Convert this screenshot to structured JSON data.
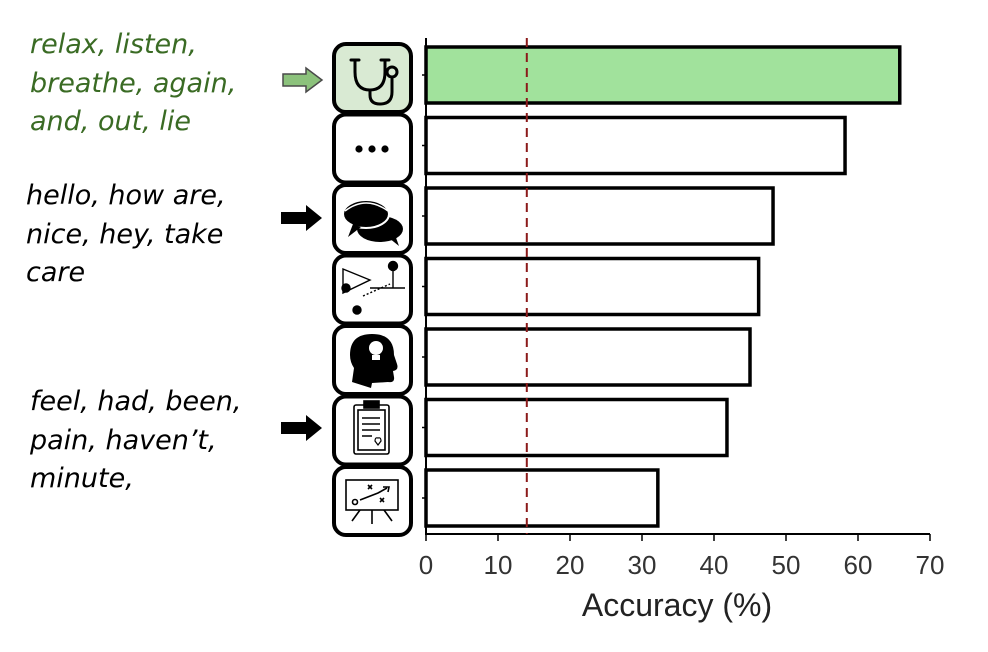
{
  "annotations": [
    {
      "lines": [
        "relax, listen,",
        "breathe, again,",
        "and, out, lie"
      ],
      "color": "#3a6b24",
      "arrow": "green"
    },
    {
      "lines": [
        "hello, how are,",
        "nice, hey, take",
        "care"
      ],
      "color": "#000000",
      "arrow": "black"
    },
    {
      "lines": [
        "feel, had, been,",
        "pain, haven’t,",
        "minute,"
      ],
      "color": "#000000",
      "arrow": "black"
    }
  ],
  "colors": {
    "highlight_bar": "#a1e29c",
    "highlight_icon_bg": "#d9ead3",
    "reference_line": "#8b1a1a",
    "green_arrow": "#8cc27c"
  },
  "chart_data": {
    "type": "bar",
    "orientation": "horizontal",
    "categories": [
      "stethoscope-icon",
      "ellipsis-icon",
      "speech-bubbles-icon",
      "network-diagram-icon",
      "head-lightbulb-icon",
      "clipboard-heart-icon",
      "strategy-board-icon"
    ],
    "values": [
      65.8,
      58.2,
      48.2,
      46.2,
      45.0,
      41.8,
      32.2
    ],
    "highlighted_index": 0,
    "reference_line_x": 14,
    "xlim": [
      0,
      70
    ],
    "xticks": [
      0,
      10,
      20,
      30,
      40,
      50,
      60,
      70
    ],
    "xlabel": "Accuracy (%)",
    "ylabel": "",
    "title": "",
    "grid": false
  }
}
